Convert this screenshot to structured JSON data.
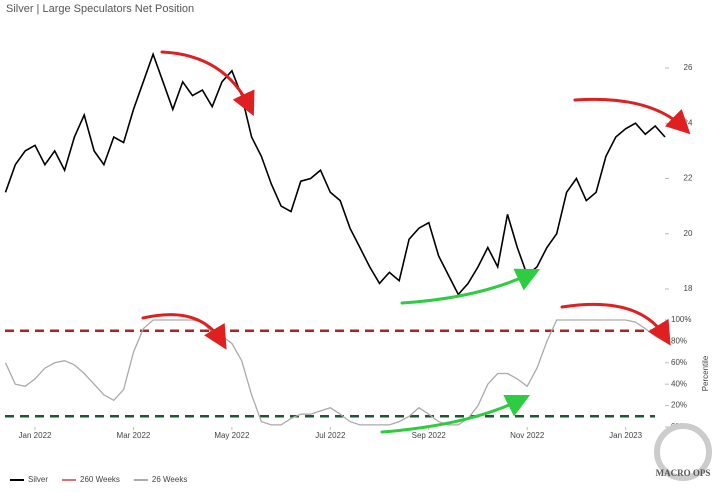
{
  "title": "Silver | Large Speculators Net Position",
  "legend": [
    {
      "name": "Silver",
      "color": "#000000"
    },
    {
      "name": "260 Weeks",
      "color": "#e07070"
    },
    {
      "name": "26 Weeks",
      "color": "#aaaaaa"
    }
  ],
  "logo": "MACRO OPS",
  "chart_data": [
    {
      "type": "line",
      "color": "#000000",
      "x": [
        -0.6,
        -0.4,
        -0.2,
        0,
        0.2,
        0.4,
        0.6,
        0.8,
        1.0,
        1.2,
        1.4,
        1.6,
        1.8,
        2.0,
        2.2,
        2.4,
        2.6,
        2.8,
        3.0,
        3.2,
        3.4,
        3.6,
        3.8,
        4.0,
        4.2,
        4.4,
        4.6,
        4.8,
        5.0,
        5.2,
        5.4,
        5.6,
        5.8,
        6.0,
        6.2,
        6.4,
        6.6,
        6.8,
        7.0,
        7.2,
        7.4,
        7.6,
        7.8,
        8.0,
        8.2,
        8.4,
        8.6,
        8.8,
        9.0,
        9.2,
        9.4,
        9.6,
        9.8,
        10.0,
        10.2,
        10.4,
        10.6,
        10.8,
        11.0,
        11.2,
        11.4,
        11.6,
        11.8,
        12.0,
        12.2,
        12.4,
        12.6,
        12.8
      ],
      "values": [
        21.5,
        22.5,
        23.0,
        23.2,
        22.5,
        23.0,
        22.3,
        23.5,
        24.3,
        23.0,
        22.5,
        23.5,
        23.3,
        24.5,
        25.5,
        26.5,
        25.5,
        24.5,
        25.5,
        25.0,
        25.2,
        24.6,
        25.5,
        25.9,
        25.0,
        23.5,
        22.8,
        21.8,
        21.0,
        20.8,
        21.9,
        22.0,
        22.3,
        21.5,
        21.2,
        20.2,
        19.5,
        18.8,
        18.2,
        18.6,
        18.3,
        19.8,
        20.2,
        20.4,
        19.2,
        18.5,
        17.8,
        18.2,
        18.8,
        19.5,
        18.8,
        20.7,
        19.5,
        18.5,
        18.8,
        19.5,
        20.0,
        21.5,
        22.0,
        21.2,
        21.5,
        22.8,
        23.5,
        23.8,
        24.0,
        23.6,
        23.9,
        23.5
      ],
      "xlim": [
        -0.61,
        12.8
      ],
      "ylim": [
        17.6,
        28.1
      ],
      "yticks": [
        18,
        20,
        22,
        24,
        26
      ]
    },
    {
      "type": "line",
      "color": "#aaaaaa",
      "y_label": "Percentile",
      "x": [
        -0.6,
        -0.4,
        -0.2,
        0,
        0.2,
        0.4,
        0.6,
        0.8,
        1.0,
        1.2,
        1.4,
        1.6,
        1.8,
        2.0,
        2.2,
        2.4,
        2.6,
        2.8,
        3.0,
        3.2,
        3.4,
        3.6,
        3.8,
        4.0,
        4.2,
        4.4,
        4.6,
        4.8,
        5.0,
        5.2,
        5.4,
        5.6,
        5.8,
        6.0,
        6.2,
        6.4,
        6.6,
        6.8,
        7.0,
        7.2,
        7.4,
        7.6,
        7.8,
        8.0,
        8.2,
        8.4,
        8.6,
        8.8,
        9.0,
        9.2,
        9.4,
        9.6,
        9.8,
        10.0,
        10.2,
        10.4,
        10.6,
        10.8,
        11.0,
        11.2,
        11.4,
        11.6,
        11.8,
        12.0,
        12.2,
        12.4,
        12.6,
        12.8
      ],
      "values": [
        60,
        40,
        38,
        45,
        55,
        60,
        62,
        58,
        50,
        40,
        30,
        25,
        35,
        70,
        92,
        100,
        100,
        100,
        100,
        100,
        98,
        88,
        85,
        78,
        62,
        30,
        5,
        2,
        2,
        8,
        12,
        12,
        15,
        18,
        12,
        5,
        2,
        2,
        2,
        2,
        5,
        10,
        18,
        12,
        5,
        2,
        2,
        8,
        20,
        40,
        50,
        50,
        45,
        38,
        55,
        80,
        100,
        100,
        100,
        100,
        100,
        100,
        100,
        100,
        98,
        92,
        85,
        80
      ],
      "xlim": [
        -0.61,
        12.8
      ],
      "ylim": [
        0,
        100
      ],
      "yticks": [
        {
          "value": 0,
          "label": "0%"
        },
        {
          "value": 20,
          "label": "20%"
        },
        {
          "value": 40,
          "label": "40%"
        },
        {
          "value": 60,
          "label": "60%"
        },
        {
          "value": 80,
          "label": "80%"
        },
        {
          "value": 100,
          "label": "100%"
        }
      ],
      "xticks": [
        {
          "value": 0,
          "label": "Jan 2022"
        },
        {
          "value": 2,
          "label": "Mar 2022"
        },
        {
          "value": 4,
          "label": "May 2022"
        },
        {
          "value": 6,
          "label": "Jul 2022"
        },
        {
          "value": 8,
          "label": "Sep 2022"
        },
        {
          "value": 10,
          "label": "Nov 2022"
        },
        {
          "value": 12,
          "label": "Jan 2023"
        }
      ],
      "reference_lines": [
        {
          "value": 90,
          "color": "#b22222"
        },
        {
          "value": 10,
          "color": "#1e5631"
        }
      ]
    }
  ]
}
